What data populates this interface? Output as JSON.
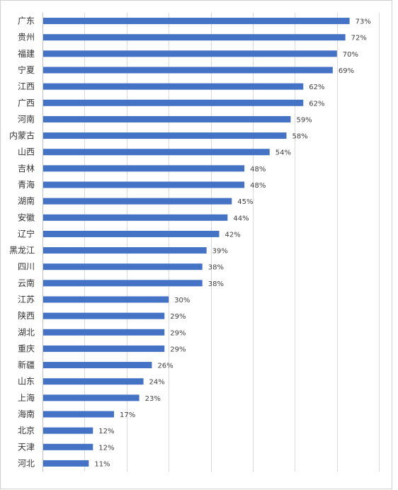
{
  "chart_data": {
    "type": "bar",
    "orientation": "horizontal",
    "categories": [
      "广东",
      "贵州",
      "福建",
      "宁夏",
      "江西",
      "广西",
      "河南",
      "内蒙古",
      "山西",
      "吉林",
      "青海",
      "湖南",
      "安徽",
      "辽宁",
      "黑龙江",
      "四川",
      "云南",
      "江苏",
      "陕西",
      "湖北",
      "重庆",
      "新疆",
      "山东",
      "上海",
      "海南",
      "北京",
      "天津",
      "河北"
    ],
    "values": [
      73,
      72,
      70,
      69,
      62,
      62,
      59,
      58,
      54,
      48,
      48,
      45,
      44,
      42,
      39,
      38,
      38,
      30,
      29,
      29,
      29,
      26,
      24,
      23,
      17,
      12,
      12,
      11
    ],
    "labels": [
      "73%",
      "72%",
      "70%",
      "69%",
      "62%",
      "62%",
      "59%",
      "58%",
      "54%",
      "48%",
      "48%",
      "45%",
      "44%",
      "42%",
      "39%",
      "38%",
      "38%",
      "30%",
      "29%",
      "29%",
      "29%",
      "26%",
      "24%",
      "23%",
      "17%",
      "12%",
      "12%",
      "11%"
    ],
    "title": "",
    "xlabel": "",
    "ylabel": "",
    "xlim": [
      0,
      84
    ],
    "grid": true,
    "legend": "none",
    "bar_color": "#4472c4"
  }
}
